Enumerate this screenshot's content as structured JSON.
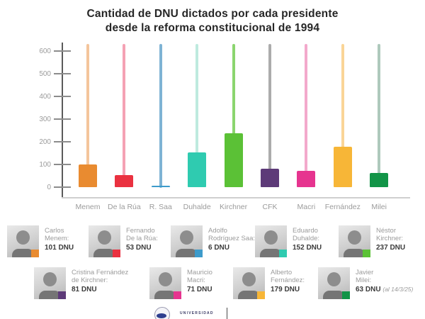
{
  "title": "Cantidad de DNU dictados por cada presidente\ndesde la reforma constitucional de 1994",
  "chart_data": {
    "type": "bar",
    "title": "Cantidad de DNU dictados por cada presidente desde la reforma constitucional de 1994",
    "categories": [
      "Menem",
      "De la Rúa",
      "R. Saa",
      "Duhalde",
      "Kirchner",
      "CFK",
      "Macri",
      "Fernández",
      "Milei"
    ],
    "values": [
      101,
      53,
      6,
      152,
      237,
      81,
      71,
      179,
      63
    ],
    "bar_colors": [
      "#E98B30",
      "#EA3140",
      "#3D9BCB",
      "#2FCBB0",
      "#5BC136",
      "#5D3A78",
      "#E6348F",
      "#F7B637",
      "#129447"
    ],
    "stem_colors": [
      "#F4C59C",
      "#F5A2B4",
      "#7EB3D4",
      "#BEEADF",
      "#8BD56F",
      "#ACACAC",
      "#F3A9CC",
      "#FAD597",
      "#AEC9BC"
    ],
    "xlabel": "",
    "ylabel": "",
    "ylim": [
      0,
      600
    ],
    "yticks": [
      0,
      100,
      200,
      300,
      400,
      500,
      600
    ],
    "stem_top_value": 630,
    "grid": false,
    "legend_position": "below"
  },
  "legend": {
    "rows": [
      [
        {
          "name": "Carlos\nMenem:",
          "value": "101 DNU",
          "note": "",
          "color": "#E98B30"
        },
        {
          "name": "Fernando\nDe la Rúa:",
          "value": "53 DNU",
          "note": "",
          "color": "#EA3140"
        },
        {
          "name": "Adolfo\nRodríguez Saa:",
          "value": "6 DNU",
          "note": "",
          "color": "#3D9BCB"
        },
        {
          "name": "Eduardo\nDuhalde:",
          "value": "152 DNU",
          "note": "",
          "color": "#2FCBB0"
        },
        {
          "name": "Néstor\nKirchner:",
          "value": "237 DNU",
          "note": "",
          "color": "#5BC136"
        }
      ],
      [
        {
          "name": "Cristina Fernández\nde Kirchner:",
          "value": "81 DNU",
          "note": "",
          "color": "#5D3A78"
        },
        {
          "name": "Mauricio\nMacri:",
          "value": "71 DNU",
          "note": "",
          "color": "#E6348F"
        },
        {
          "name": "Alberto\nFernández:",
          "value": "179 DNU",
          "note": "",
          "color": "#F7B637"
        },
        {
          "name": "Javier\nMilei:",
          "value": "63 DNU",
          "note": "(al 14/3/25)",
          "color": "#129447"
        }
      ]
    ]
  },
  "footer": {
    "logo_text": "UNIVERSIDAD"
  }
}
